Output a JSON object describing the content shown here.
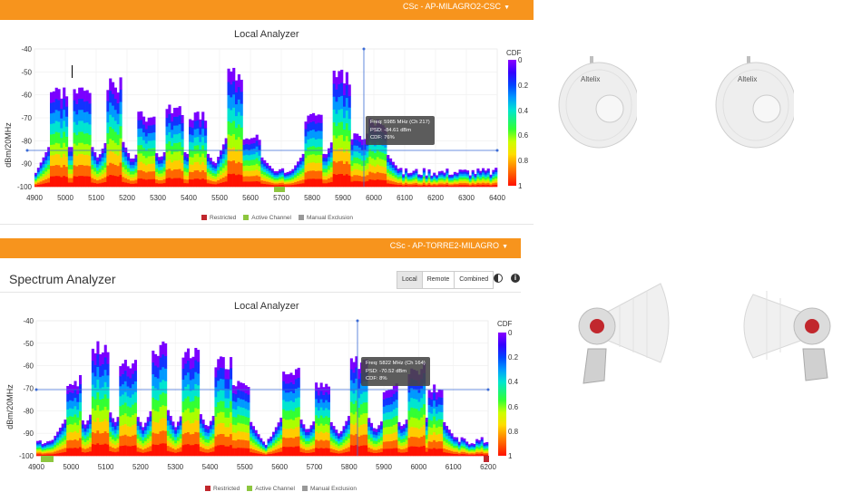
{
  "panel1": {
    "device": "CSc - AP-MILAGRO2-CSC",
    "chart": {
      "title": "Local  Analyzer",
      "ylabel": "dBm/20MHz",
      "yticks": [
        "-40",
        "-50",
        "-60",
        "-70",
        "-80",
        "-90",
        "-100"
      ],
      "xticks": [
        "4900",
        "5000",
        "5100",
        "5200",
        "5300",
        "5400",
        "5500",
        "5600",
        "5700",
        "5800",
        "5900",
        "6000",
        "6100",
        "6200",
        "6300",
        "6400"
      ],
      "cdf_label": "CDF",
      "cdf_ticks": [
        "0",
        "0.2",
        "0.4",
        "0.6",
        "0.8",
        "1"
      ],
      "tooltip": {
        "freq": "Freq: 5985 MHz (Ch 217)",
        "psd": "PSD: -84.61 dBm",
        "cdf": "CDF: 76%"
      },
      "legend": [
        "Restricted",
        "Active Channel",
        "Manual Exclusion"
      ]
    }
  },
  "panel2": {
    "device": "CSc - AP-TORRE2-MILAGRO",
    "section_title": "Spectrum Analyzer",
    "view_buttons": [
      "Local",
      "Remote",
      "Combined"
    ],
    "chart": {
      "title": "Local  Analyzer",
      "ylabel": "dBm/20MHz",
      "yticks": [
        "-40",
        "-50",
        "-60",
        "-70",
        "-80",
        "-90",
        "-100"
      ],
      "xticks": [
        "4900",
        "5000",
        "5100",
        "5200",
        "5300",
        "5400",
        "5500",
        "5600",
        "5700",
        "5800",
        "5900",
        "6000",
        "6100",
        "6200"
      ],
      "cdf_label": "CDF",
      "cdf_ticks": [
        "0",
        "0.2",
        "0.4",
        "0.6",
        "0.8",
        "1"
      ],
      "tooltip": {
        "freq": "Freq: 5822 MHz (Ch 164)",
        "psd": "PSD: -70.52 dBm",
        "cdf": "CDF: 8%"
      },
      "legend": [
        "Restricted",
        "Active Channel",
        "Manual Exclusion"
      ]
    }
  },
  "photos": {
    "dish_brand": "Altelix"
  },
  "colors": {
    "header": "#f7941d",
    "restricted": "#c1272d",
    "active_channel": "#8dc63f",
    "manual_exclusion": "#999999",
    "crosshair": "#3b6bd6"
  }
}
